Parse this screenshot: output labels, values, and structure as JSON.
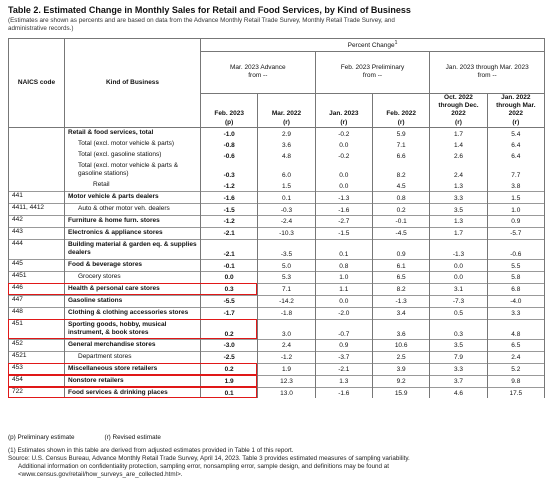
{
  "header": {
    "title": "Table 2.  Estimated Change in Monthly Sales for Retail and Food Services, by Kind of Business",
    "subtitle": "(Estimates are shown as percents and are based on data from the Advance Monthly Retail Trade Survey, Monthly Retail Trade Survey, and administrative records.)"
  },
  "table": {
    "code_header": "NAICS code",
    "name_header": "Kind of Business",
    "super_header": "Percent Change",
    "super_note": "1",
    "groups": [
      {
        "label": "Mar. 2023 Advance",
        "from": "from --"
      },
      {
        "label": "Feb. 2023 Preliminary",
        "from": "from --"
      },
      {
        "label": "Jan. 2023 through Mar. 2023",
        "from": "from --"
      }
    ],
    "columns": [
      {
        "label": "Feb. 2023",
        "note": "(p)"
      },
      {
        "label": "Mar. 2022",
        "note": "(r)"
      },
      {
        "label": "Jan. 2023",
        "note": "(r)"
      },
      {
        "label": "Feb. 2022",
        "note": "(r)"
      },
      {
        "label": "Oct. 2022 through Dec. 2022",
        "note": "(r)"
      },
      {
        "label": "Jan. 2022 through Mar. 2022",
        "note": "(r)"
      }
    ],
    "rows": [
      {
        "code": "",
        "name": "Retail & food services, total",
        "level": 0,
        "values": [
          "-1.0",
          "2.9",
          "-0.2",
          "5.9",
          "1.7",
          "5.4"
        ]
      },
      {
        "code": "",
        "name": "Total (excl. motor vehicle & parts)",
        "level": 1,
        "values": [
          "-0.8",
          "3.6",
          "0.0",
          "7.1",
          "1.4",
          "6.4"
        ]
      },
      {
        "code": "",
        "name": "Total (excl. gasoline stations)",
        "level": 1,
        "values": [
          "-0.6",
          "4.8",
          "-0.2",
          "6.6",
          "2.6",
          "6.4"
        ]
      },
      {
        "code": "",
        "name": "Total (excl. motor vehicle & parts & gasoline stations)",
        "level": 1,
        "values": [
          "-0.3",
          "6.0",
          "0.0",
          "8.2",
          "2.4",
          "7.7"
        ]
      },
      {
        "code": "",
        "name": "Retail",
        "level": 2,
        "values": [
          "-1.2",
          "1.5",
          "0.0",
          "4.5",
          "1.3",
          "3.8"
        ]
      },
      {
        "code": "441",
        "name": "Motor vehicle & parts dealers",
        "level": 0,
        "values": [
          "-1.6",
          "0.1",
          "-1.3",
          "0.8",
          "3.3",
          "1.5"
        ]
      },
      {
        "code": "4411, 4412",
        "name": "Auto & other motor veh. dealers",
        "level": 1,
        "values": [
          "-1.5",
          "-0.3",
          "-1.6",
          "0.2",
          "3.5",
          "1.0"
        ]
      },
      {
        "code": "442",
        "name": "Furniture & home furn. stores",
        "level": 0,
        "values": [
          "-1.2",
          "-2.4",
          "-2.7",
          "-0.1",
          "1.3",
          "0.9"
        ]
      },
      {
        "code": "443",
        "name": "Electronics & appliance stores",
        "level": 0,
        "values": [
          "-2.1",
          "-10.3",
          "-1.5",
          "-4.5",
          "1.7",
          "-5.7"
        ]
      },
      {
        "code": "444",
        "name": "Building material & garden eq. & supplies dealers",
        "level": 0,
        "values": [
          "-2.1",
          "-3.5",
          "0.1",
          "0.9",
          "-1.3",
          "-0.6"
        ]
      },
      {
        "code": "445",
        "name": "Food & beverage stores",
        "level": 0,
        "values": [
          "-0.1",
          "5.0",
          "0.8",
          "6.1",
          "0.0",
          "5.5"
        ]
      },
      {
        "code": "4451",
        "name": "Grocery stores",
        "level": 1,
        "values": [
          "0.0",
          "5.3",
          "1.0",
          "6.5",
          "0.0",
          "5.8"
        ]
      },
      {
        "code": "446",
        "name": "Health & personal care stores",
        "level": 0,
        "highlight": true,
        "values": [
          "0.3",
          "7.1",
          "1.1",
          "8.2",
          "3.1",
          "6.8"
        ]
      },
      {
        "code": "447",
        "name": "Gasoline stations",
        "level": 0,
        "values": [
          "-5.5",
          "-14.2",
          "0.0",
          "-1.3",
          "-7.3",
          "-4.0"
        ]
      },
      {
        "code": "448",
        "name": "Clothing & clothing accessories stores",
        "level": 0,
        "values": [
          "-1.7",
          "-1.8",
          "-2.0",
          "3.4",
          "0.5",
          "3.3"
        ]
      },
      {
        "code": "451",
        "name": "Sporting goods, hobby, musical instrument, & book stores",
        "level": 0,
        "highlight": true,
        "values": [
          "0.2",
          "3.0",
          "-0.7",
          "3.6",
          "0.3",
          "4.8"
        ]
      },
      {
        "code": "452",
        "name": "General merchandise stores",
        "level": 0,
        "values": [
          "-3.0",
          "2.4",
          "0.9",
          "10.6",
          "3.5",
          "6.5"
        ]
      },
      {
        "code": "4521",
        "name": "Department stores",
        "level": 1,
        "values": [
          "-2.5",
          "-1.2",
          "-3.7",
          "2.5",
          "7.9",
          "2.4"
        ]
      },
      {
        "code": "453",
        "name": "Miscellaneous store retailers",
        "level": 0,
        "highlight": true,
        "values": [
          "0.2",
          "1.9",
          "-2.1",
          "3.9",
          "3.3",
          "5.2"
        ]
      },
      {
        "code": "454",
        "name": "Nonstore retailers",
        "level": 0,
        "highlight": true,
        "values": [
          "1.9",
          "12.3",
          "1.3",
          "9.2",
          "3.7",
          "9.8"
        ]
      },
      {
        "code": "722",
        "name": "Food services & drinking places",
        "level": 0,
        "highlight": true,
        "values": [
          "0.1",
          "13.0",
          "-1.6",
          "15.9",
          "4.6",
          "17.5"
        ]
      }
    ]
  },
  "legend": {
    "p": "(p) Preliminary estimate",
    "r": "(r) Revised estimate"
  },
  "footnotes": [
    "(1) Estimates shown in this table are derived from adjusted estimates provided in Table 1 of this report.",
    "Source: U.S. Census Bureau, Advance Monthly Retail Trade Survey, April 14, 2023. Table 3 provides estimated measures of sampling variability.",
    "Additional information on confidentiality protection, sampling error, nonsampling error, sample design, and definitions may be found at",
    "<www.census.gov/retail/how_surveys_are_collected.html>."
  ]
}
